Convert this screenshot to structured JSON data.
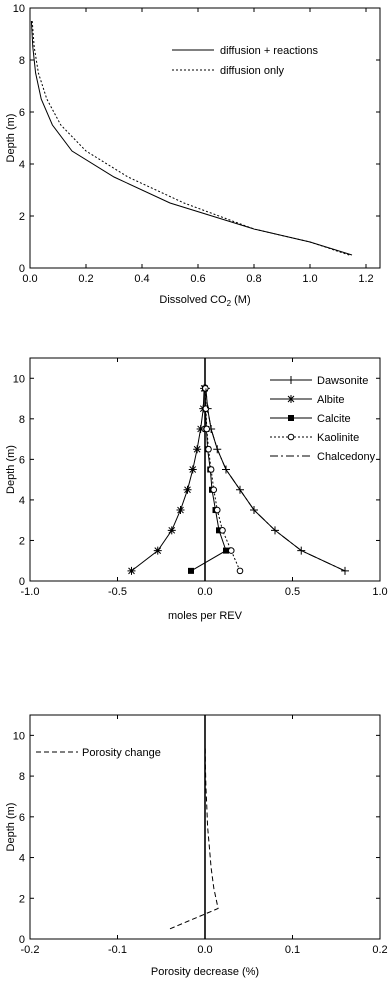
{
  "chart_data": [
    {
      "type": "line",
      "xlabel": "Dissolved CO",
      "xlabel_sub": "2",
      "xlabel_unit": " (M)",
      "ylabel": "Depth (m)",
      "xlim": [
        0.0,
        1.25
      ],
      "ylim": [
        0,
        10
      ],
      "xticks": [
        0.0,
        0.2,
        0.4,
        0.6,
        0.8,
        1.0,
        1.2
      ],
      "xtick_labels": [
        "0.0",
        "0.2",
        "0.4",
        "0.6",
        "0.8",
        "1.0",
        "1.2"
      ],
      "yticks": [
        0,
        2,
        4,
        6,
        8,
        10
      ],
      "ytick_labels": [
        "0",
        "2",
        "4",
        "6",
        "8",
        "10"
      ],
      "legend_position": "top-right",
      "series": [
        {
          "name": "diffusion + reactions",
          "style": "solid",
          "x": [
            1.15,
            1.0,
            0.8,
            0.5,
            0.3,
            0.15,
            0.08,
            0.04,
            0.02,
            0.01,
            0.005
          ],
          "y": [
            0.5,
            1.0,
            1.5,
            2.5,
            3.5,
            4.5,
            5.5,
            6.5,
            7.5,
            8.5,
            9.5
          ]
        },
        {
          "name": "diffusion only",
          "style": "dotted",
          "x": [
            1.14,
            1.0,
            0.8,
            0.55,
            0.35,
            0.2,
            0.11,
            0.06,
            0.03,
            0.015,
            0.008
          ],
          "y": [
            0.5,
            1.0,
            1.5,
            2.5,
            3.5,
            4.5,
            5.5,
            6.5,
            7.5,
            8.5,
            9.5
          ]
        }
      ]
    },
    {
      "type": "line",
      "xlabel": "moles per REV",
      "ylabel": "Depth (m)",
      "xlim": [
        -1.0,
        1.0
      ],
      "ylim": [
        0,
        11
      ],
      "xticks": [
        -1.0,
        -0.5,
        0.0,
        0.5,
        1.0
      ],
      "xtick_labels": [
        "-1.0",
        "-0.5",
        "0.0",
        "0.5",
        "1.0"
      ],
      "yticks": [
        0,
        2,
        4,
        6,
        8,
        10
      ],
      "ytick_labels": [
        "0",
        "2",
        "4",
        "6",
        "8",
        "10"
      ],
      "legend_position": "top-right",
      "series": [
        {
          "name": "Dawsonite",
          "marker": "plus",
          "line": "solid",
          "x": [
            0.8,
            0.55,
            0.4,
            0.28,
            0.2,
            0.12,
            0.07,
            0.035,
            0.015,
            0.005
          ],
          "y": [
            0.5,
            1.5,
            2.5,
            3.5,
            4.5,
            5.5,
            6.5,
            7.5,
            8.5,
            9.5
          ]
        },
        {
          "name": "Albite",
          "marker": "asterisk",
          "line": "solid",
          "x": [
            -0.42,
            -0.27,
            -0.19,
            -0.14,
            -0.1,
            -0.07,
            -0.045,
            -0.025,
            -0.01,
            -0.005
          ],
          "y": [
            0.5,
            1.5,
            2.5,
            3.5,
            4.5,
            5.5,
            6.5,
            7.5,
            8.5,
            9.5
          ]
        },
        {
          "name": "Calcite",
          "marker": "square",
          "line": "solid",
          "x": [
            -0.08,
            0.12,
            0.08,
            0.06,
            0.04,
            0.03,
            0.015,
            0.008,
            0.003,
            0.0
          ],
          "y": [
            0.5,
            1.5,
            2.5,
            3.5,
            4.5,
            5.5,
            6.5,
            7.5,
            8.5,
            9.5
          ]
        },
        {
          "name": "Kaolinite",
          "marker": "circle",
          "line": "dotted",
          "x": [
            0.2,
            0.15,
            0.1,
            0.07,
            0.05,
            0.035,
            0.02,
            0.01,
            0.005,
            0.002
          ],
          "y": [
            0.5,
            1.5,
            2.5,
            3.5,
            4.5,
            5.5,
            6.5,
            7.5,
            8.5,
            9.5
          ]
        },
        {
          "name": "Chalcedony",
          "marker": "none",
          "line": "dashdot",
          "x": [
            0.8,
            0.55,
            0.4,
            0.28,
            0.2,
            0.12,
            0.07,
            0.035,
            0.015,
            0.005
          ],
          "y": [
            0.5,
            1.5,
            2.5,
            3.5,
            4.5,
            5.5,
            6.5,
            7.5,
            8.5,
            9.5
          ]
        }
      ]
    },
    {
      "type": "line",
      "xlabel": "Porosity decrease (%)",
      "ylabel": "Depth (m)",
      "xlim": [
        -0.2,
        0.2
      ],
      "ylim": [
        0,
        11
      ],
      "xticks": [
        -0.2,
        -0.1,
        0.0,
        0.1,
        0.2
      ],
      "xtick_labels": [
        "-0.2",
        "-0.1",
        "0.0",
        "0.1",
        "0.2"
      ],
      "yticks": [
        0,
        2,
        4,
        6,
        8,
        10
      ],
      "ytick_labels": [
        "0",
        "2",
        "4",
        "6",
        "8",
        "10"
      ],
      "legend_position": "top-left",
      "series": [
        {
          "name": "Porosity change",
          "line": "dashed",
          "x": [
            -0.04,
            0.015,
            0.01,
            0.007,
            0.005,
            0.003,
            0.002,
            0.001,
            0.0005,
            0.0002
          ],
          "y": [
            0.5,
            1.5,
            2.5,
            3.5,
            4.5,
            5.5,
            6.5,
            7.5,
            8.5,
            9.5
          ]
        }
      ]
    }
  ]
}
